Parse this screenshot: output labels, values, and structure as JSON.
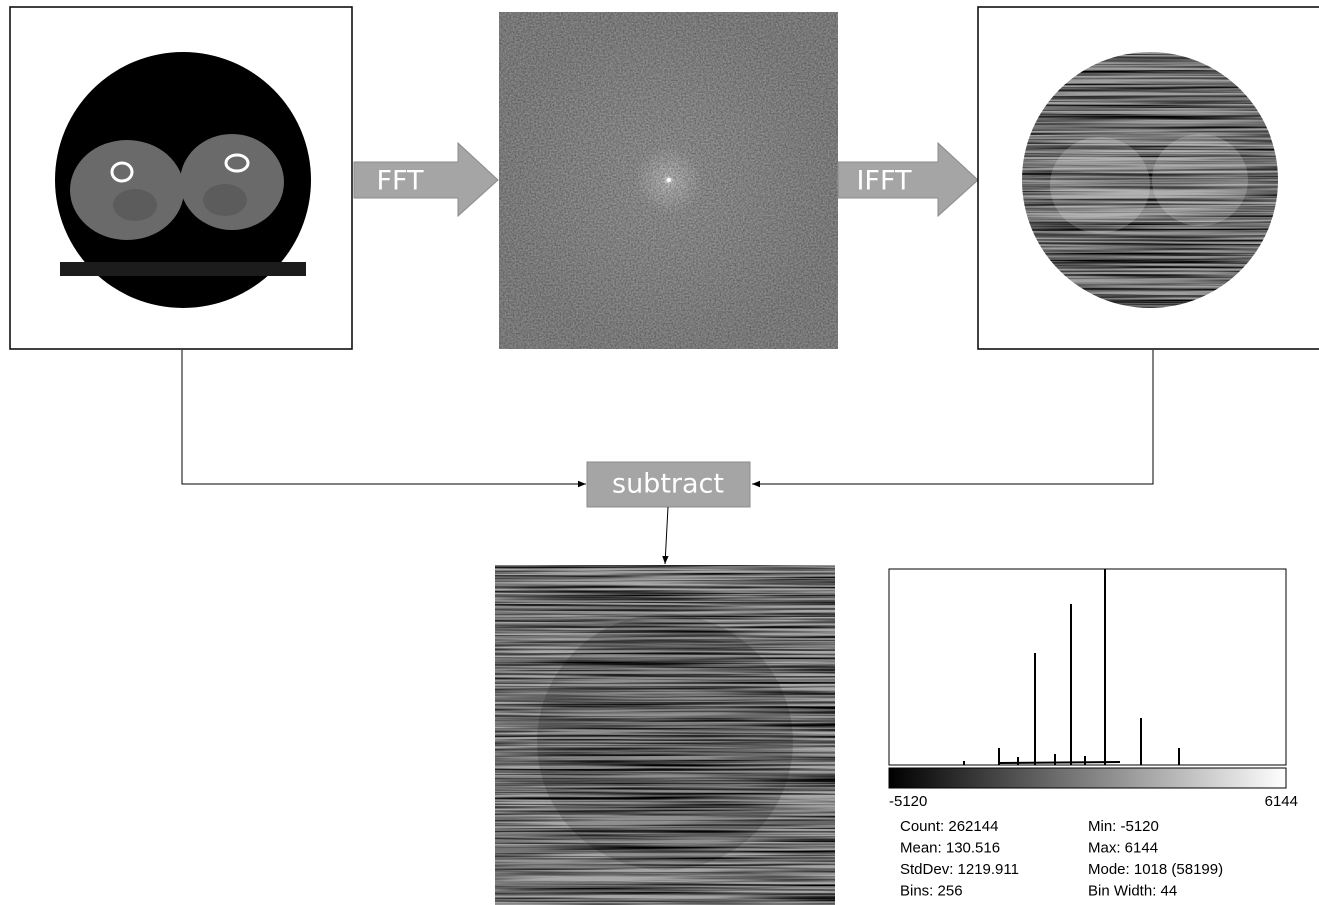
{
  "steps": {
    "fft": "FFT",
    "ifft": "IFFT",
    "subtract": "subtract"
  },
  "histogram": {
    "min_label": "-5120",
    "max_label": "6144",
    "stats_left": [
      "Count: 262144",
      "Mean: 130.516",
      "StdDev: 1219.911",
      "Bins: 256"
    ],
    "stats_right": [
      "Min: -5120",
      "Max: 6144",
      "Mode: 1018 (58199)",
      "Bin Width: 44"
    ]
  }
}
